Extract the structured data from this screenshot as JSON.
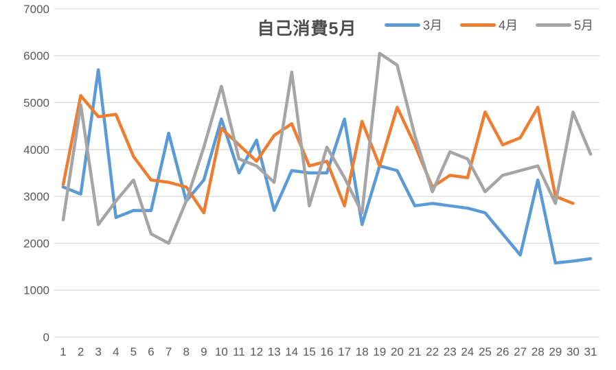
{
  "chart_data": {
    "type": "line",
    "title": "自己消費5月",
    "categories": [
      1,
      2,
      3,
      4,
      5,
      6,
      7,
      8,
      9,
      10,
      11,
      12,
      13,
      14,
      15,
      16,
      17,
      18,
      19,
      20,
      21,
      22,
      23,
      24,
      25,
      26,
      27,
      28,
      29,
      30,
      31
    ],
    "xlabel": "",
    "ylabel": "",
    "ylim": [
      0,
      7000
    ],
    "ytick_interval": 1000,
    "y_tick_labels": [
      "0",
      "1000",
      "2000",
      "3000",
      "4000",
      "5000",
      "6000",
      "7000"
    ],
    "grid": true,
    "legend_position": "top-right",
    "series": [
      {
        "name": "3月",
        "color": "#5B9BD5",
        "values": [
          3200,
          3050,
          5700,
          2550,
          2700,
          2700,
          4350,
          2900,
          3350,
          4650,
          3500,
          4200,
          2700,
          3550,
          3500,
          3500,
          4650,
          2400,
          3650,
          3550,
          2800,
          2850,
          2800,
          2750,
          2650,
          2200,
          1750,
          3350,
          1580,
          1620,
          1670
        ]
      },
      {
        "name": "4月",
        "color": "#ED7D31",
        "values": [
          3250,
          5150,
          4700,
          4750,
          3850,
          3350,
          3300,
          3200,
          2650,
          4450,
          4100,
          3750,
          4300,
          4550,
          3650,
          3750,
          2800,
          4600,
          3650,
          4900,
          4100,
          3200,
          3450,
          3400,
          4800,
          4100,
          4250,
          4900,
          3000,
          2850
        ]
      },
      {
        "name": "5月",
        "color": "#A5A5A5",
        "values": [
          2500,
          4950,
          2400,
          2900,
          3350,
          2200,
          2000,
          2900,
          4050,
          5350,
          3800,
          3650,
          3300,
          5650,
          2800,
          4050,
          3400,
          2650,
          6050,
          5800,
          4300,
          3100,
          3950,
          3800,
          3100,
          3450,
          3550,
          3650,
          2850,
          4800,
          3900
        ]
      }
    ]
  },
  "colors": {
    "grid_line": "#D9D9D9",
    "axis_line": "#D9D9D9",
    "tick_text": "#595959",
    "title_text": "#4D4D4D"
  }
}
